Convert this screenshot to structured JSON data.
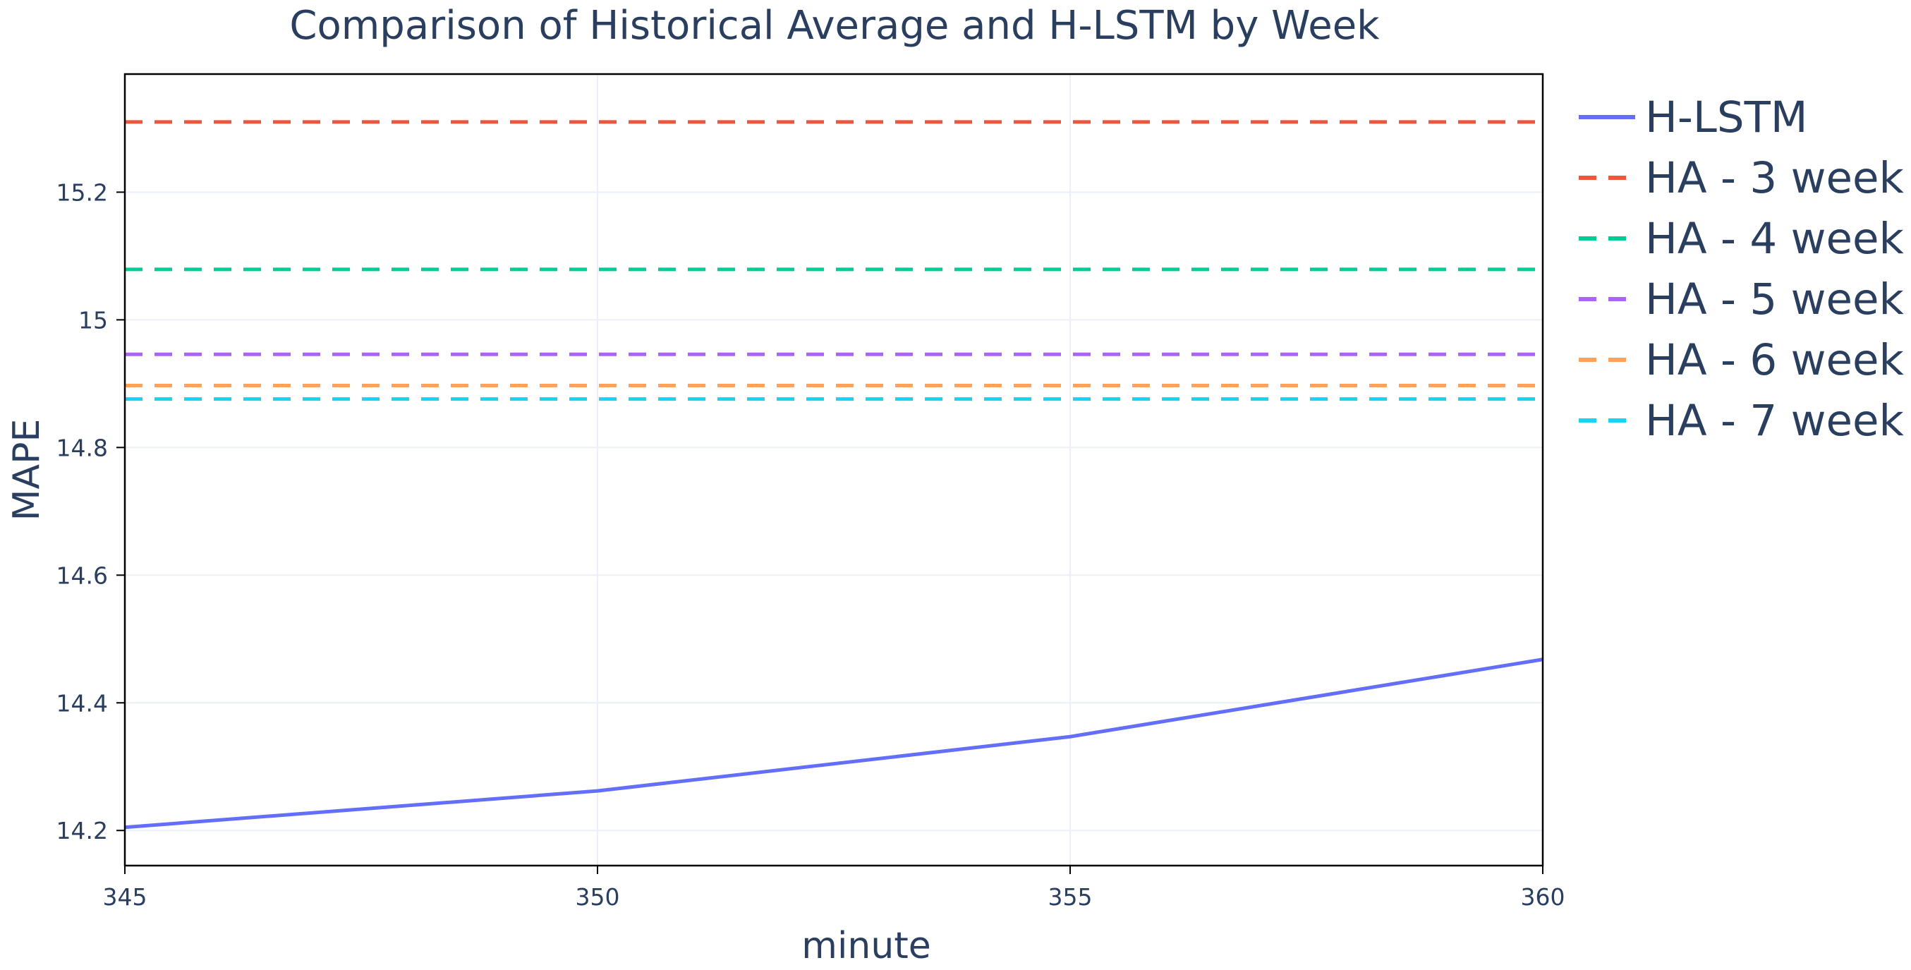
{
  "chart_data": {
    "type": "line",
    "title": "Comparison of Historical Average and H-LSTM by Week",
    "xlabel": "minute",
    "ylabel": "MAPE",
    "xlim": [
      345,
      360
    ],
    "ylim": [
      14.145,
      15.385
    ],
    "x_ticks": [
      345,
      350,
      355,
      360
    ],
    "x_tick_labels": [
      "345",
      "350",
      "355",
      "360"
    ],
    "y_ticks": [
      14.2,
      14.4,
      14.6,
      14.8,
      15.0,
      15.2
    ],
    "y_tick_labels": [
      "14.2",
      "14.4",
      "14.6",
      "14.8",
      "15",
      "15.2"
    ],
    "grid": true,
    "legend_position": "right",
    "series": [
      {
        "name": "H-LSTM",
        "x": [
          345,
          350,
          355,
          360
        ],
        "values": [
          14.205,
          14.262,
          14.347,
          14.468
        ],
        "color": "#636efa",
        "dash": "solid"
      },
      {
        "name": "HA - 3 week",
        "x": [
          345,
          360
        ],
        "values": [
          15.31,
          15.31
        ],
        "color": "#ef553b",
        "dash": "dash"
      },
      {
        "name": "HA - 4 week",
        "x": [
          345,
          360
        ],
        "values": [
          15.079,
          15.079
        ],
        "color": "#00cc96",
        "dash": "dash"
      },
      {
        "name": "HA - 5 week",
        "x": [
          345,
          360
        ],
        "values": [
          14.946,
          14.946
        ],
        "color": "#ab63fa",
        "dash": "dash"
      },
      {
        "name": "HA - 6 week",
        "x": [
          345,
          360
        ],
        "values": [
          14.897,
          14.897
        ],
        "color": "#ffa15a",
        "dash": "dash"
      },
      {
        "name": "HA - 7 week",
        "x": [
          345,
          360
        ],
        "values": [
          14.876,
          14.876
        ],
        "color": "#19d3f3",
        "dash": "dash"
      }
    ]
  }
}
